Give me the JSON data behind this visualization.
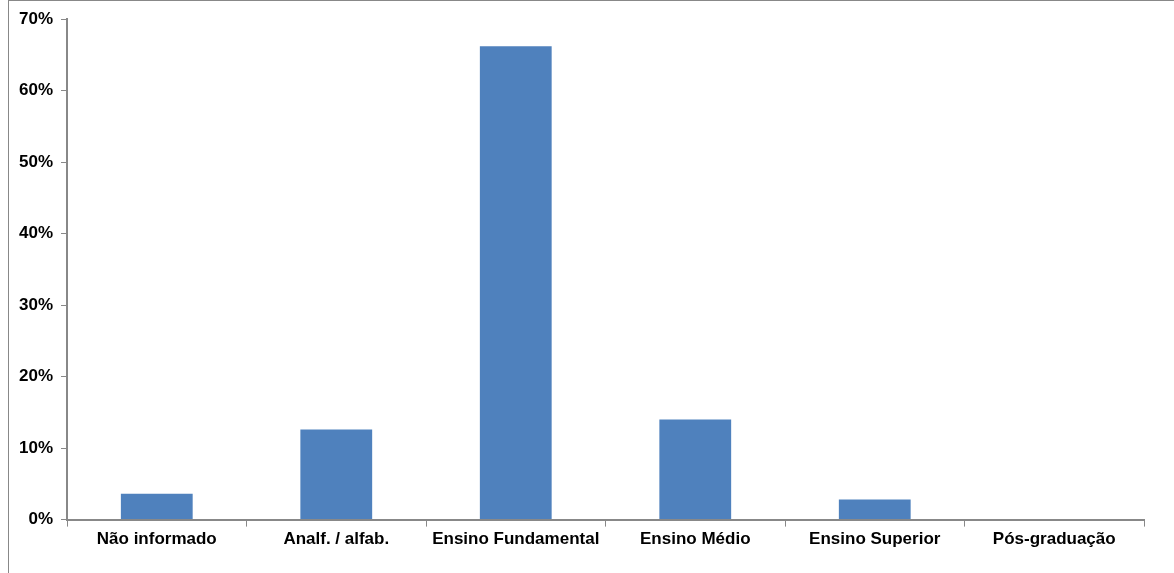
{
  "chart_data": {
    "type": "bar",
    "categories": [
      "Não informado",
      "Analf. / alfab.",
      "Ensino Fundamental",
      "Ensino Médio",
      "Ensino Superior",
      "Pós-graduação"
    ],
    "values": [
      3.6,
      12.6,
      66.2,
      14.0,
      2.8,
      0
    ],
    "color": "#4f81bd",
    "ylim": [
      0,
      70
    ],
    "yticks": [
      {
        "value": 0,
        "label": "0%"
      },
      {
        "value": 10,
        "label": "10%"
      },
      {
        "value": 20,
        "label": "20%"
      },
      {
        "value": 30,
        "label": "30%"
      },
      {
        "value": 40,
        "label": "40%"
      },
      {
        "value": 50,
        "label": "50%"
      },
      {
        "value": 60,
        "label": "60%"
      },
      {
        "value": 70,
        "label": "70%"
      }
    ],
    "grid": false,
    "legend": false
  }
}
